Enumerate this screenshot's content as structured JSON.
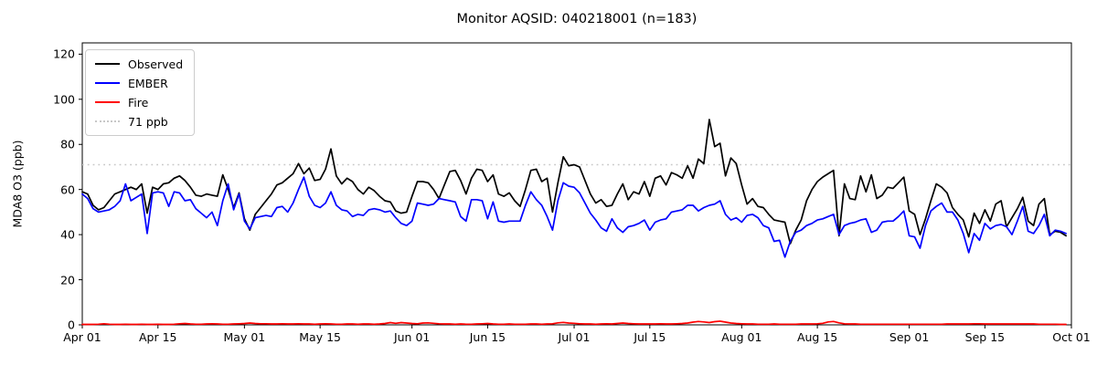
{
  "chart_data": {
    "type": "line",
    "title": "Monitor AQSID: 040218001 (n=183)",
    "xlabel": "",
    "ylabel": "MDA8 O3 (ppb)",
    "ylim": [
      0,
      125
    ],
    "y_ticks": [
      0,
      20,
      40,
      60,
      80,
      100,
      120
    ],
    "x_tick_labels": [
      "Apr 01",
      "Apr 15",
      "May 01",
      "May 15",
      "Jun 01",
      "Jun 15",
      "Jul 01",
      "Jul 15",
      "Aug 01",
      "Aug 15",
      "Sep 01",
      "Sep 15",
      "Oct 01"
    ],
    "x_tick_days": [
      0,
      14,
      30,
      44,
      61,
      75,
      91,
      105,
      122,
      136,
      153,
      167,
      183
    ],
    "x_range_days": 183,
    "grid": false,
    "legend_position": "upper left",
    "threshold": {
      "value": 71,
      "label": "71 ppb",
      "color": "#c8c8c8",
      "style": "dotted"
    },
    "legend": [
      {
        "label": "Observed",
        "color": "#000000",
        "style": "solid"
      },
      {
        "label": "EMBER",
        "color": "#0000ff",
        "style": "solid"
      },
      {
        "label": "Fire",
        "color": "#ff0000",
        "style": "solid"
      },
      {
        "label": "71 ppb",
        "color": "#c8c8c8",
        "style": "dotted"
      }
    ],
    "series": [
      {
        "name": "Observed",
        "color": "#000000",
        "values": [
          59,
          58,
          53,
          51,
          52,
          55,
          58,
          59,
          60,
          61,
          60,
          62.5,
          49.5,
          61,
          60,
          62.5,
          63,
          65,
          66,
          64,
          61,
          57.5,
          57,
          58,
          57.5,
          57,
          66.5,
          60,
          52,
          58.5,
          47,
          42,
          49,
          52,
          55,
          58,
          62,
          63,
          65,
          67,
          71.5,
          67,
          69.5,
          64,
          64.5,
          69,
          78,
          66,
          62.5,
          65,
          63.5,
          60,
          58,
          61,
          59.5,
          57,
          55,
          54.5,
          50.5,
          49.5,
          50,
          57,
          63.5,
          63.5,
          63,
          60,
          56,
          62,
          68,
          68.5,
          64,
          58,
          65,
          69,
          68.5,
          63.5,
          66.5,
          58,
          57,
          58.5,
          55,
          52.5,
          60,
          68.5,
          69,
          63.5,
          65,
          50,
          63,
          74.5,
          70.5,
          71,
          70,
          64,
          58,
          54,
          55.5,
          52.5,
          53,
          58,
          62.5,
          55.5,
          59,
          58,
          63.5,
          57,
          65,
          66,
          62,
          67.5,
          66.5,
          65,
          70.5,
          65,
          73.5,
          71.5,
          91,
          79,
          80.5,
          66,
          74,
          71.5,
          62,
          53.5,
          56,
          52.5,
          52,
          49,
          46.5,
          46,
          45.5,
          36,
          42,
          46.5,
          55,
          60,
          63.5,
          65.5,
          67,
          68.5,
          39.5,
          62.5,
          56,
          55.5,
          66,
          59,
          66.5,
          56,
          57.5,
          61,
          60.5,
          63,
          65.5,
          50.5,
          49,
          40,
          47,
          55,
          62.5,
          61,
          58.5,
          52,
          49,
          46.5,
          39,
          49.5,
          45,
          51,
          46,
          53.5,
          55,
          43.5,
          47.5,
          51.5,
          56.5,
          46,
          44,
          53.5,
          56,
          40,
          41.5,
          41,
          39.5
        ]
      },
      {
        "name": "EMBER",
        "color": "#0000ff",
        "values": [
          58,
          56,
          51.5,
          50,
          50.5,
          51,
          52.5,
          55,
          62.5,
          55,
          56.5,
          58,
          40.5,
          58.5,
          59,
          58.5,
          52.5,
          59,
          58.5,
          55,
          55.5,
          51.5,
          49.5,
          47.5,
          50,
          44,
          55,
          62.5,
          51,
          58,
          46,
          42.5,
          47.5,
          48,
          48.5,
          48,
          52,
          52.5,
          50,
          54,
          60,
          65.5,
          57,
          53,
          52,
          54,
          59,
          53,
          51,
          50.5,
          48,
          49,
          48.5,
          51,
          51.5,
          51,
          50,
          50.5,
          47.5,
          45,
          44,
          46,
          54,
          53.5,
          53,
          53.5,
          56,
          55.5,
          55,
          54.5,
          48,
          46,
          55.5,
          55.5,
          55,
          47,
          54.5,
          46,
          45.5,
          46,
          46,
          46,
          53,
          59,
          55.5,
          53,
          48,
          42,
          55,
          63,
          61.5,
          61,
          58.5,
          54,
          49.5,
          46.5,
          43,
          41.5,
          47,
          43,
          41,
          43.5,
          44,
          45,
          46.5,
          42,
          45.5,
          46.5,
          47,
          50,
          50.5,
          51,
          53,
          53,
          50.5,
          52,
          53,
          53.5,
          55,
          49,
          46.5,
          47.5,
          45.5,
          48.5,
          49,
          47.5,
          44,
          43,
          37,
          37.5,
          30,
          37,
          41,
          42,
          44,
          45,
          46.5,
          47,
          48,
          49,
          40,
          44,
          45,
          45.5,
          46.5,
          47,
          41,
          42,
          45.5,
          46,
          46,
          48,
          50.5,
          39.5,
          39,
          34,
          44,
          50.5,
          52.5,
          54,
          50,
          50,
          46.5,
          40.5,
          32,
          40.5,
          37.5,
          45,
          42.5,
          44,
          44.5,
          43.5,
          40,
          46,
          52.5,
          41.5,
          40.5,
          44,
          49,
          39.5,
          42,
          41.5,
          40.5
        ]
      },
      {
        "name": "Fire",
        "color": "#ff0000",
        "values": [
          0.2,
          0.2,
          0.2,
          0.3,
          0.5,
          0.3,
          0.2,
          0.2,
          0.3,
          0.2,
          0.2,
          0.3,
          0.2,
          0.2,
          0.3,
          0.2,
          0.2,
          0.3,
          0.5,
          0.6,
          0.4,
          0.3,
          0.3,
          0.4,
          0.5,
          0.4,
          0.3,
          0.3,
          0.4,
          0.5,
          0.6,
          0.8,
          0.6,
          0.5,
          0.5,
          0.4,
          0.4,
          0.5,
          0.4,
          0.4,
          0.5,
          0.4,
          0.4,
          0.3,
          0.4,
          0.5,
          0.4,
          0.3,
          0.3,
          0.4,
          0.4,
          0.3,
          0.4,
          0.4,
          0.3,
          0.4,
          0.6,
          1.0,
          0.7,
          1.0,
          0.8,
          0.6,
          0.5,
          0.8,
          0.9,
          0.7,
          0.5,
          0.4,
          0.4,
          0.3,
          0.4,
          0.3,
          0.3,
          0.4,
          0.5,
          0.6,
          0.4,
          0.3,
          0.3,
          0.4,
          0.3,
          0.3,
          0.3,
          0.4,
          0.4,
          0.3,
          0.4,
          0.5,
          0.9,
          1.1,
          0.8,
          0.7,
          0.5,
          0.4,
          0.4,
          0.3,
          0.4,
          0.5,
          0.4,
          0.6,
          0.8,
          0.6,
          0.5,
          0.4,
          0.4,
          0.4,
          0.4,
          0.5,
          0.4,
          0.4,
          0.5,
          0.6,
          0.8,
          1.2,
          1.5,
          1.3,
          1.0,
          1.4,
          1.6,
          1.2,
          0.8,
          0.6,
          0.5,
          0.4,
          0.4,
          0.3,
          0.3,
          0.3,
          0.4,
          0.3,
          0.3,
          0.3,
          0.3,
          0.4,
          0.4,
          0.4,
          0.5,
          0.7,
          1.3,
          1.5,
          0.9,
          0.5,
          0.4,
          0.4,
          0.3,
          0.3,
          0.3,
          0.3,
          0.3,
          0.3,
          0.3,
          0.3,
          0.3,
          0.3,
          0.3,
          0.3,
          0.3,
          0.3,
          0.3,
          0.3,
          0.4,
          0.4,
          0.4,
          0.4,
          0.4,
          0.5,
          0.5,
          0.4,
          0.4,
          0.4,
          0.4,
          0.4,
          0.4,
          0.4,
          0.4,
          0.4,
          0.4,
          0.3,
          0.3,
          0.3,
          0.3,
          0.2,
          0.2
        ]
      }
    ]
  }
}
